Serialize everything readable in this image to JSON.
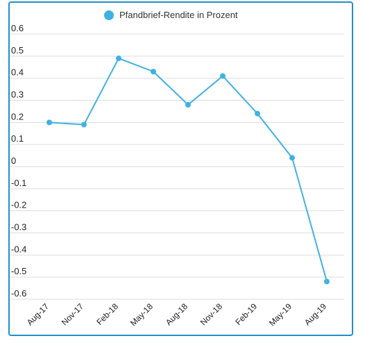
{
  "chart_data": {
    "type": "line",
    "legend": {
      "entries": [
        "Pfandbrief-Rendite in Prozent"
      ],
      "placement": "top-center"
    },
    "categories": [
      "Aug-17",
      "Nov-17",
      "Feb-18",
      "May-18",
      "Aug-18",
      "Nov-18",
      "Feb-19",
      "May-19",
      "Aug-19"
    ],
    "series": [
      {
        "name": "Pfandbrief-Rendite in Prozent",
        "values": [
          0.2,
          0.19,
          0.49,
          0.43,
          0.28,
          0.41,
          0.24,
          0.04,
          -0.52
        ],
        "color": "#3fb1e3"
      }
    ],
    "yticks": [
      "0.6",
      "0.5",
      "0.4",
      "0.3",
      "0.2",
      "0.1",
      "0",
      "-0.1",
      "-0.2",
      "-0.3",
      "-0.4",
      "-0.5",
      "-0.6"
    ],
    "ylim": [
      -0.6,
      0.6
    ],
    "grid": true,
    "title": "",
    "xlabel": "",
    "ylabel": ""
  },
  "colors": {
    "frame_border": "#1f8fc9",
    "gridline": "#dcdcdc",
    "series": "#3fb1e3"
  }
}
